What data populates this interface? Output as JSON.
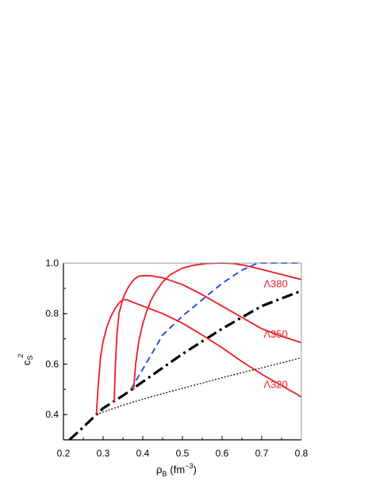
{
  "chart_data": {
    "type": "line",
    "xlabel_main": "ρ",
    "xlabel_sub": "B",
    "xlabel_unit": "(fm",
    "xlabel_exp": "−3",
    "xlabel_close": ")",
    "ylabel_main": "c",
    "ylabel_sub": "S",
    "ylabel_exp": "2",
    "xlim": [
      0.2,
      0.8
    ],
    "ylim": [
      0.3,
      1.0
    ],
    "xticks": [
      0.2,
      0.3,
      0.4,
      0.5,
      0.6,
      0.7,
      0.8
    ],
    "xtick_labels": [
      "0.2",
      "0.3",
      "0.4",
      "0.5",
      "0.6",
      "0.7",
      "0.8"
    ],
    "yticks": [
      0.4,
      0.6,
      0.8,
      1.0
    ],
    "ytick_labels": [
      "0.4",
      "0.6",
      "0.8",
      "1.0"
    ],
    "grid": false,
    "colors": {
      "red": "#ee1c25",
      "blue": "#1f3fe0",
      "black": "#000000"
    },
    "annotations": [
      {
        "id": "label-lambda380",
        "text": "Λ380",
        "x": 0.735,
        "y": 0.905,
        "color": "#ee1c25"
      },
      {
        "id": "label-lambda350",
        "text": "Λ350",
        "x": 0.735,
        "y": 0.705,
        "color": "#ee1c25"
      },
      {
        "id": "label-lambda320",
        "text": "Λ320",
        "x": 0.735,
        "y": 0.505,
        "color": "#ee1c25"
      }
    ],
    "series": [
      {
        "id": "dotted-black",
        "color": "#000000",
        "style": "dotted",
        "width": 1.2,
        "x": [
          0.283,
          0.3,
          0.35,
          0.4,
          0.45,
          0.5,
          0.55,
          0.6,
          0.65,
          0.7,
          0.75,
          0.8
        ],
        "y": [
          0.4,
          0.41,
          0.437,
          0.461,
          0.483,
          0.504,
          0.525,
          0.546,
          0.566,
          0.585,
          0.605,
          0.625
        ]
      },
      {
        "id": "dashdot-black",
        "color": "#000000",
        "style": "dashdot",
        "width": 3.2,
        "x": [
          0.215,
          0.25,
          0.283,
          0.3,
          0.35,
          0.4,
          0.45,
          0.5,
          0.55,
          0.6,
          0.65,
          0.7,
          0.75,
          0.8
        ],
        "y": [
          0.3,
          0.35,
          0.4,
          0.425,
          0.475,
          0.53,
          0.585,
          0.64,
          0.69,
          0.74,
          0.785,
          0.83,
          0.86,
          0.89
        ]
      },
      {
        "id": "dashed-blue",
        "color": "#1f3fe0",
        "style": "dashed",
        "width": 1.8,
        "x": [
          0.37,
          0.4,
          0.45,
          0.5,
          0.55,
          0.6,
          0.65,
          0.69,
          0.72,
          0.8
        ],
        "y": [
          0.5,
          0.58,
          0.715,
          0.79,
          0.855,
          0.92,
          0.972,
          1.0,
          1.0,
          1.0
        ]
      },
      {
        "id": "red-lambda320",
        "color": "#ee1c25",
        "style": "solid",
        "width": 1.8,
        "x": [
          0.283,
          0.287,
          0.293,
          0.3,
          0.31,
          0.32,
          0.33,
          0.34,
          0.35,
          0.36,
          0.37,
          0.4,
          0.45,
          0.5,
          0.55,
          0.6,
          0.65,
          0.7,
          0.75,
          0.8
        ],
        "y": [
          0.4,
          0.5,
          0.62,
          0.69,
          0.75,
          0.79,
          0.82,
          0.842,
          0.855,
          0.855,
          0.848,
          0.83,
          0.8,
          0.762,
          0.715,
          0.665,
          0.61,
          0.56,
          0.515,
          0.47
        ]
      },
      {
        "id": "red-lambda350",
        "color": "#ee1c25",
        "style": "solid",
        "width": 1.8,
        "x": [
          0.328,
          0.331,
          0.335,
          0.34,
          0.35,
          0.36,
          0.37,
          0.38,
          0.39,
          0.4,
          0.41,
          0.42,
          0.45,
          0.5,
          0.55,
          0.6,
          0.65,
          0.7,
          0.75,
          0.8
        ],
        "y": [
          0.45,
          0.6,
          0.72,
          0.8,
          0.86,
          0.895,
          0.92,
          0.938,
          0.948,
          0.95,
          0.95,
          0.95,
          0.942,
          0.915,
          0.875,
          0.83,
          0.785,
          0.74,
          0.71,
          0.685
        ]
      },
      {
        "id": "red-lambda380",
        "color": "#ee1c25",
        "style": "solid",
        "width": 1.8,
        "x": [
          0.377,
          0.382,
          0.39,
          0.4,
          0.41,
          0.42,
          0.43,
          0.45,
          0.47,
          0.5,
          0.53,
          0.56,
          0.6,
          0.63,
          0.66,
          0.7,
          0.75,
          0.8
        ],
        "y": [
          0.5,
          0.6,
          0.69,
          0.76,
          0.81,
          0.85,
          0.88,
          0.925,
          0.955,
          0.98,
          0.992,
          0.998,
          1.0,
          0.998,
          0.99,
          0.975,
          0.955,
          0.935
        ]
      }
    ]
  }
}
